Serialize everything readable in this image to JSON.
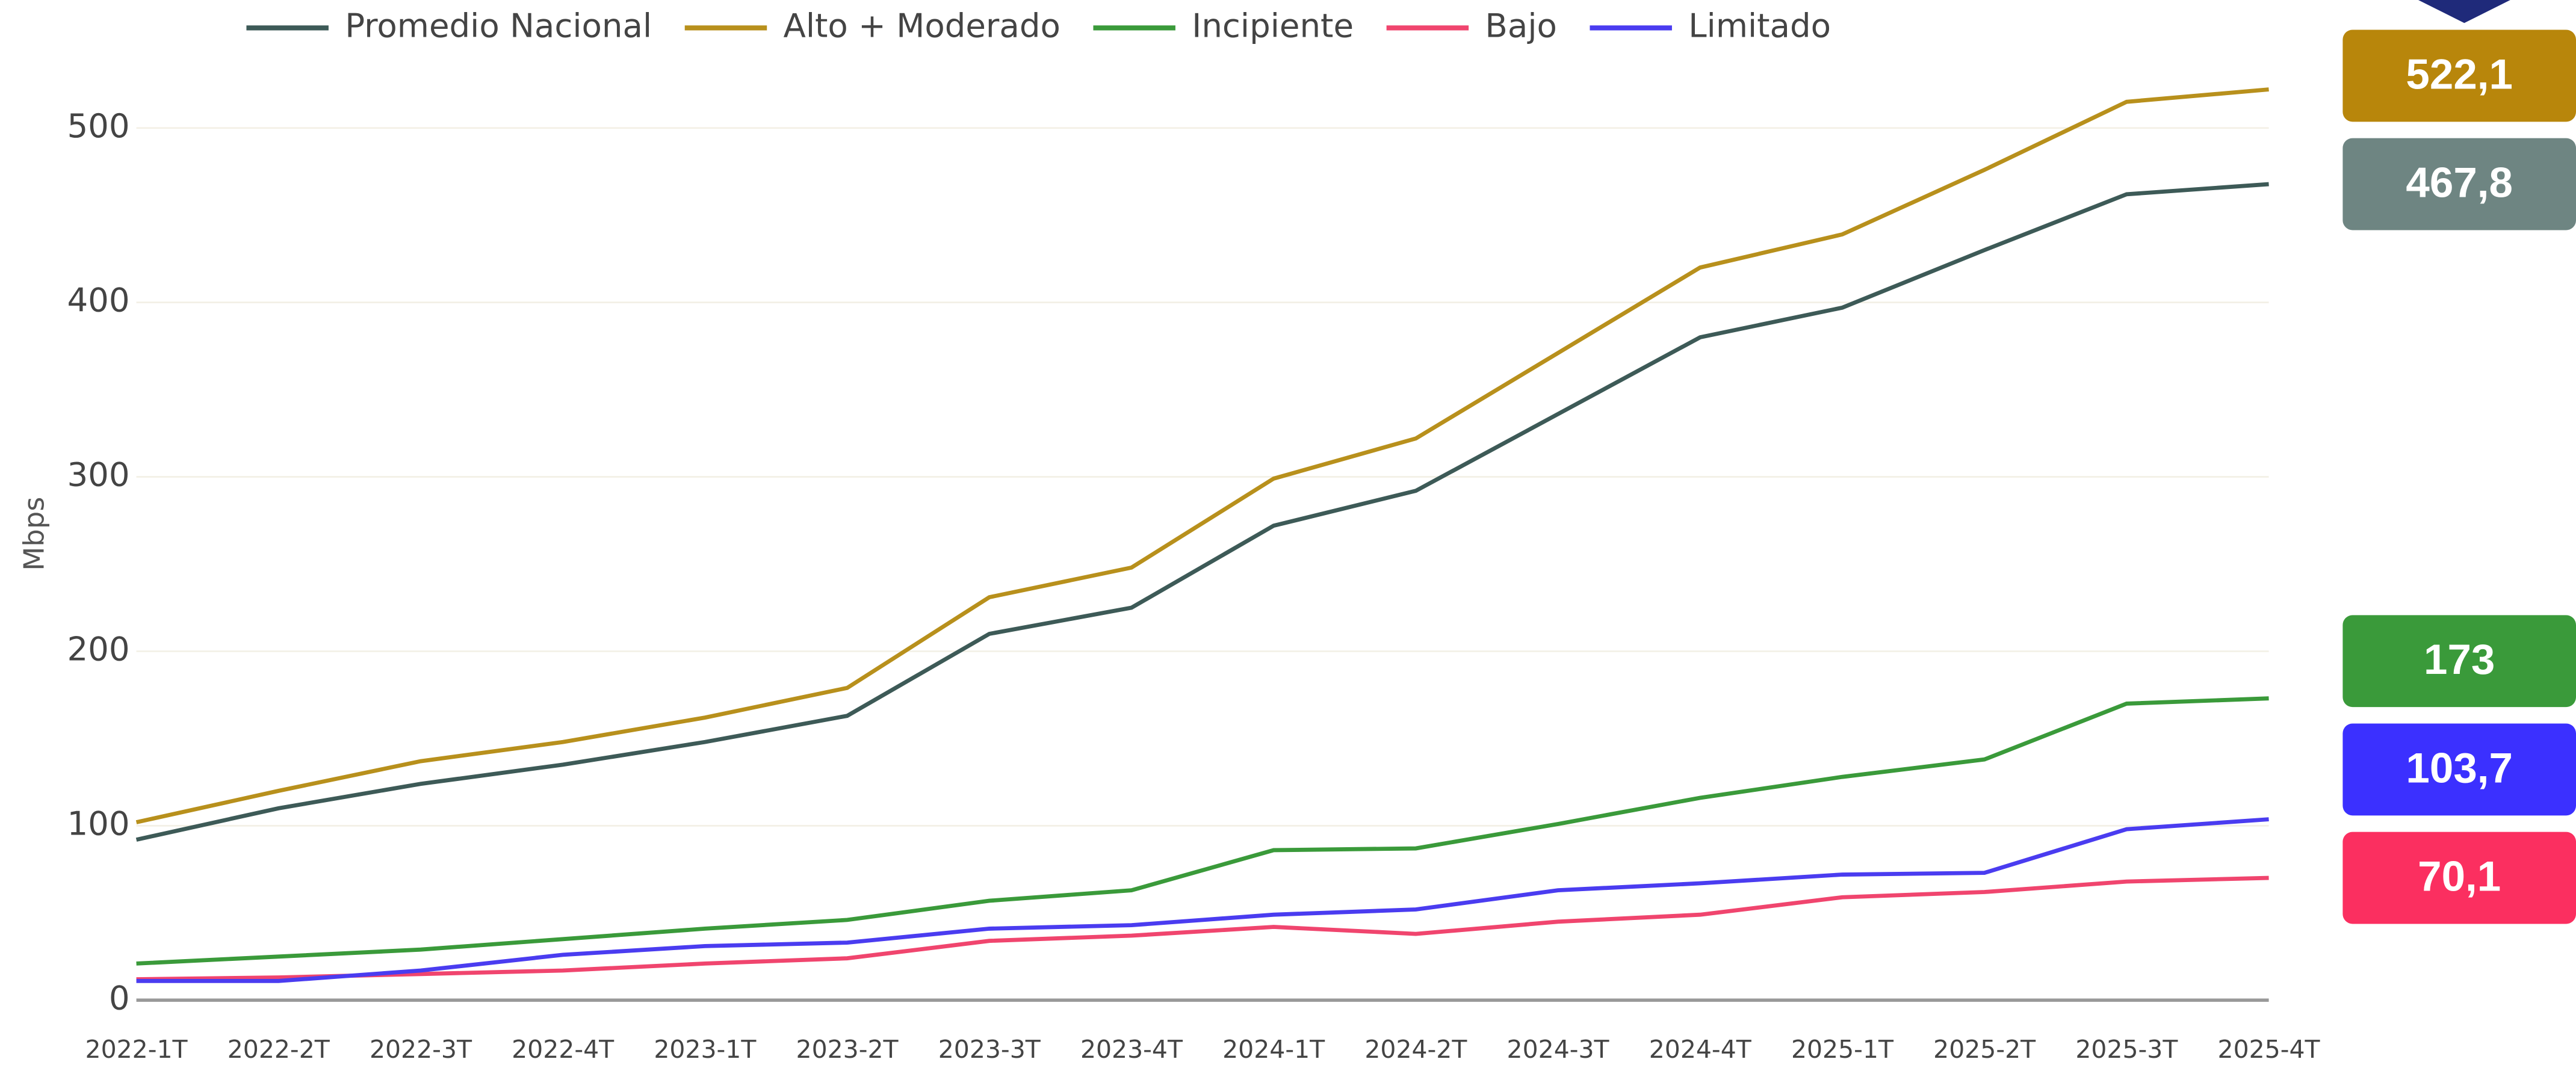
{
  "chart_data": {
    "type": "line",
    "y_label": "Mbps",
    "categories": [
      "2022-1T",
      "2022-2T",
      "2022-3T",
      "2022-4T",
      "2023-1T",
      "2023-2T",
      "2023-3T",
      "2023-4T",
      "2024-1T",
      "2024-2T",
      "2024-3T",
      "2024-4T",
      "2025-1T",
      "2025-2T",
      "2025-3T",
      "2025-4T"
    ],
    "series": [
      {
        "name": "Promedio Nacional",
        "color": "#3d5a57",
        "badge_color": "#6e8582",
        "values": [
          92,
          110,
          124,
          135,
          148,
          163,
          210,
          225,
          272,
          292,
          336,
          380,
          397,
          430,
          462,
          467.8
        ],
        "end_label": "467,8"
      },
      {
        "name": "Alto + Moderado",
        "color": "#b8901c",
        "badge_color": "#b8860b",
        "values": [
          102,
          120,
          137,
          148,
          162,
          179,
          231,
          248,
          299,
          322,
          371,
          420,
          439,
          476,
          515,
          522.1
        ],
        "end_label": "522,1"
      },
      {
        "name": "Incipiente",
        "color": "#3a9a3a",
        "badge_color": "#3a9a3a",
        "values": [
          21,
          25,
          29,
          35,
          41,
          46,
          57,
          63,
          86,
          87,
          101,
          116,
          128,
          138,
          170,
          173
        ],
        "end_label": "173"
      },
      {
        "name": "Bajo",
        "color": "#f0456e",
        "badge_color": "#fb2f60",
        "values": [
          12,
          13,
          15,
          17,
          21,
          24,
          34,
          37,
          42,
          38,
          45,
          49,
          59,
          62,
          68,
          70.1
        ],
        "end_label": "70,1"
      },
      {
        "name": "Limitado",
        "color": "#4a3cf0",
        "badge_color": "#3b30ff",
        "values": [
          11,
          11,
          17,
          26,
          31,
          33,
          41,
          43,
          49,
          52,
          63,
          67,
          72,
          73,
          98,
          103.7
        ],
        "end_label": "103,7"
      }
    ],
    "ylim": [
      0,
      547
    ],
    "yticks": [
      0,
      100,
      200,
      300,
      400,
      500
    ],
    "grid": true,
    "legend": "top"
  }
}
